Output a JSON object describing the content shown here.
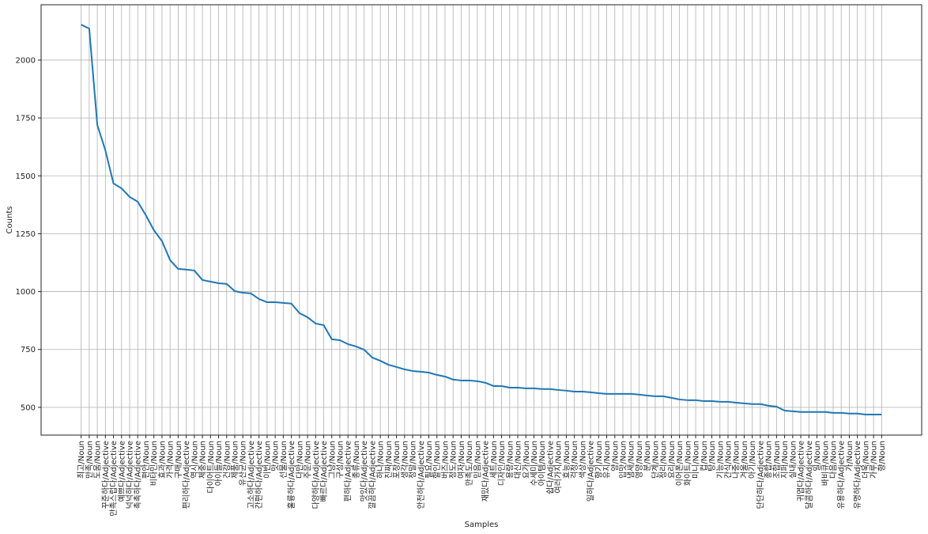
{
  "chart_data": {
    "type": "line",
    "x_label": "Samples",
    "y_label": "Counts",
    "categories": [
      "최고/Noun",
      "만족/Noun",
      "도움/Noun",
      "꾸준하다/Adjective",
      "만족스럽다/Adjective",
      "예쁘다/Adjective",
      "넉넉하다/Adjective",
      "촉촉하다/Adjective",
      "편안/Noun",
      "비타민/Noun",
      "효과/Noun",
      "가격/Noun",
      "구매/Noun",
      "편리하다/Adjective",
      "역시/Noun",
      "체중/Noun",
      "다이어트/Noun",
      "아이들/Noun",
      "건강/Noun",
      "제품/Noun",
      "유산균/Noun",
      "고소하다/Adjective",
      "간편하다/Adjective",
      "이번/Noun",
      "맛/Noun",
      "선물/Noun",
      "훌륭하다/Adjective",
      "다만/Noun",
      "주문/Noun",
      "다양하다/Adjective",
      "빠르다/Adjective",
      "그냥/Noun",
      "구성/Noun",
      "편하다/Adjective",
      "종류/Noun",
      "맛있다/Adjective",
      "깔끔하다/Adjective",
      "하나/Noun",
      "진짜/Noun",
      "포장/Noun",
      "생각/Noun",
      "정말/Noun",
      "안전하다/Adjective",
      "필요/Noun",
      "할인/Noun",
      "버즈/Noun",
      "정도/Noun",
      "여자/Noun",
      "만족도/Noun",
      "믿음/Noun",
      "재밌다/Adjective",
      "세트/Noun",
      "디자인/Noun",
      "용량/Noun",
      "대신/Noun",
      "요가/Noun",
      "수세미/Noun",
      "아이템/Noun",
      "쉽다/Adjective",
      "여러가지/Noun",
      "효능/Noun",
      "걱정/Noun",
      "색상/Noun",
      "일하다/Adjective",
      "향기/Noun",
      "유지/Noun",
      "양/Noun",
      "입맛/Noun",
      "냄새/Noun",
      "영양/Noun",
      "분/Noun",
      "단계/Noun",
      "정리/Noun",
      "요리/Noun",
      "이어폰/Noun",
      "화이트/Noun",
      "미니/Noun",
      "컵/Noun",
      "탕/Noun",
      "기능/Noun",
      "간식/Noun",
      "나중/Noun",
      "겨울/Noun",
      "아기/Noun",
      "단단하다/Adjective",
      "종합/Noun",
      "조합/Noun",
      "지퍼/Noun",
      "실내/Noun",
      "귀엽다/Adjective",
      "달콤하다/Adjective",
      "일/Noun",
      "바비큐/Noun",
      "다음/Noun",
      "유용하다/Adjective",
      "가/Noun",
      "유명하다/Adjective",
      "더욱/Noun",
      "가루/Noun",
      "향/Noun"
    ],
    "series": [
      {
        "name": "Counts",
        "color": "#1f77b4",
        "values": [
          2153,
          2136,
          1720,
          1610,
          1467,
          1446,
          1409,
          1388,
          1330,
          1265,
          1218,
          1136,
          1098,
          1095,
          1091,
          1050,
          1043,
          1036,
          1033,
          1002,
          995,
          992,
          968,
          954,
          954,
          951,
          948,
          907,
          889,
          862,
          855,
          794,
          790,
          773,
          763,
          749,
          715,
          701,
          684,
          674,
          664,
          657,
          654,
          650,
          640,
          633,
          620,
          616,
          616,
          613,
          606,
          592,
          592,
          585,
          585,
          582,
          582,
          579,
          579,
          575,
          572,
          568,
          568,
          565,
          561,
          558,
          558,
          558,
          558,
          555,
          551,
          548,
          548,
          541,
          534,
          531,
          531,
          527,
          527,
          524,
          524,
          520,
          517,
          514,
          514,
          507,
          503,
          486,
          483,
          480,
          480,
          480,
          480,
          476,
          476,
          473,
          473,
          469,
          469,
          469
        ]
      }
    ],
    "ylim": [
      380,
      2239
    ],
    "yticks": [
      500,
      750,
      1000,
      1250,
      1500,
      1750,
      2000
    ],
    "grid": true
  }
}
